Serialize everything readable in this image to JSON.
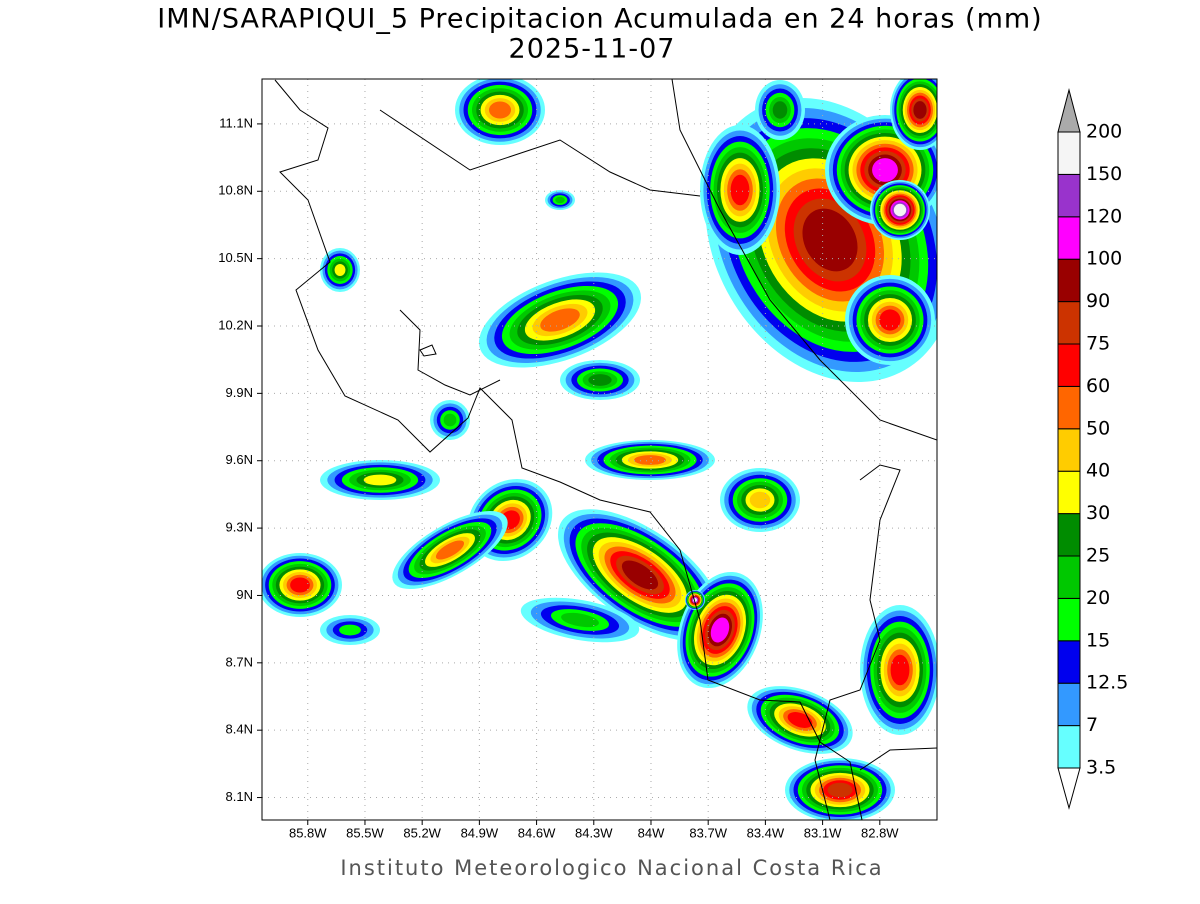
{
  "title": "IMN/SARAPIQUI_5 Precipitacion Acumulada en 24 horas (mm)",
  "subtitle": "2025-11-07",
  "footer": "Instituto Meteorologico Nacional Costa Rica",
  "map": {
    "xlim": [
      -86.04,
      -82.5
    ],
    "ylim": [
      8.0,
      11.3
    ],
    "xticks": [
      {
        "value": -85.8,
        "label": "85.8W"
      },
      {
        "value": -85.5,
        "label": "85.5W"
      },
      {
        "value": -85.2,
        "label": "85.2W"
      },
      {
        "value": -84.9,
        "label": "84.9W"
      },
      {
        "value": -84.6,
        "label": "84.6W"
      },
      {
        "value": -84.3,
        "label": "84.3W"
      },
      {
        "value": -84.0,
        "label": "84W"
      },
      {
        "value": -83.7,
        "label": "83.7W"
      },
      {
        "value": -83.4,
        "label": "83.4W"
      },
      {
        "value": -83.1,
        "label": "83.1W"
      },
      {
        "value": -82.8,
        "label": "82.8W"
      }
    ],
    "yticks": [
      {
        "value": 8.1,
        "label": "8.1N"
      },
      {
        "value": 8.4,
        "label": "8.4N"
      },
      {
        "value": 8.7,
        "label": "8.7N"
      },
      {
        "value": 9.0,
        "label": "9N"
      },
      {
        "value": 9.3,
        "label": "9.3N"
      },
      {
        "value": 9.6,
        "label": "9.6N"
      },
      {
        "value": 9.9,
        "label": "9.9N"
      },
      {
        "value": 10.2,
        "label": "10.2N"
      },
      {
        "value": 10.5,
        "label": "10.5N"
      },
      {
        "value": 10.8,
        "label": "10.8N"
      },
      {
        "value": 11.1,
        "label": "11.1N"
      }
    ],
    "grid": true
  },
  "colorbar": {
    "levels": [
      3.5,
      7,
      12.5,
      15,
      20,
      25,
      30,
      40,
      50,
      60,
      75,
      90,
      100,
      120,
      150,
      200
    ],
    "colors": [
      "#ffffff",
      "#66ffff",
      "#3399ff",
      "#0000ee",
      "#00ff00",
      "#00c800",
      "#008c00",
      "#ffff00",
      "#ffcc00",
      "#ff6600",
      "#ff0000",
      "#cc3300",
      "#990000",
      "#ff00ff",
      "#9933cc",
      "#f5f5f5",
      "#aaaaaa"
    ]
  }
}
